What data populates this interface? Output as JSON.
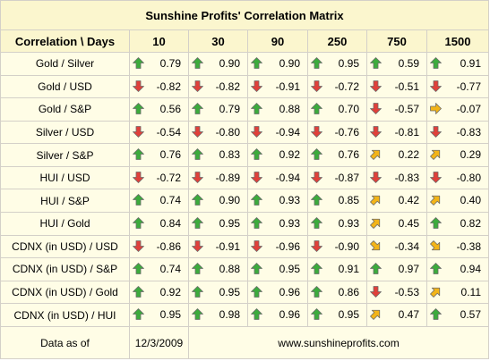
{
  "title": "Sunshine Profits' Correlation Matrix",
  "header": {
    "corner_label": "Correlation \\ Days",
    "columns": [
      "10",
      "30",
      "90",
      "250",
      "750",
      "1500"
    ]
  },
  "rows": [
    {
      "label": "Gold / Silver",
      "cells": [
        {
          "value": "0.79",
          "arrow": "up"
        },
        {
          "value": "0.90",
          "arrow": "up"
        },
        {
          "value": "0.90",
          "arrow": "up"
        },
        {
          "value": "0.95",
          "arrow": "up"
        },
        {
          "value": "0.59",
          "arrow": "up"
        },
        {
          "value": "0.91",
          "arrow": "up"
        }
      ]
    },
    {
      "label": "Gold / USD",
      "cells": [
        {
          "value": "-0.82",
          "arrow": "down"
        },
        {
          "value": "-0.82",
          "arrow": "down"
        },
        {
          "value": "-0.91",
          "arrow": "down"
        },
        {
          "value": "-0.72",
          "arrow": "down"
        },
        {
          "value": "-0.51",
          "arrow": "down"
        },
        {
          "value": "-0.77",
          "arrow": "down"
        }
      ]
    },
    {
      "label": "Gold / S&P",
      "cells": [
        {
          "value": "0.56",
          "arrow": "up"
        },
        {
          "value": "0.79",
          "arrow": "up"
        },
        {
          "value": "0.88",
          "arrow": "up"
        },
        {
          "value": "0.70",
          "arrow": "up"
        },
        {
          "value": "-0.57",
          "arrow": "down"
        },
        {
          "value": "-0.07",
          "arrow": "right"
        }
      ]
    },
    {
      "label": "Silver / USD",
      "cells": [
        {
          "value": "-0.54",
          "arrow": "down"
        },
        {
          "value": "-0.80",
          "arrow": "down"
        },
        {
          "value": "-0.94",
          "arrow": "down"
        },
        {
          "value": "-0.76",
          "arrow": "down"
        },
        {
          "value": "-0.81",
          "arrow": "down"
        },
        {
          "value": "-0.83",
          "arrow": "down"
        }
      ]
    },
    {
      "label": "Silver / S&P",
      "cells": [
        {
          "value": "0.76",
          "arrow": "up"
        },
        {
          "value": "0.83",
          "arrow": "up"
        },
        {
          "value": "0.92",
          "arrow": "up"
        },
        {
          "value": "0.76",
          "arrow": "up"
        },
        {
          "value": "0.22",
          "arrow": "up-right"
        },
        {
          "value": "0.29",
          "arrow": "up-right"
        }
      ]
    },
    {
      "label": "HUI / USD",
      "cells": [
        {
          "value": "-0.72",
          "arrow": "down"
        },
        {
          "value": "-0.89",
          "arrow": "down"
        },
        {
          "value": "-0.94",
          "arrow": "down"
        },
        {
          "value": "-0.87",
          "arrow": "down"
        },
        {
          "value": "-0.83",
          "arrow": "down"
        },
        {
          "value": "-0.80",
          "arrow": "down"
        }
      ]
    },
    {
      "label": "HUI / S&P",
      "cells": [
        {
          "value": "0.74",
          "arrow": "up"
        },
        {
          "value": "0.90",
          "arrow": "up"
        },
        {
          "value": "0.93",
          "arrow": "up"
        },
        {
          "value": "0.85",
          "arrow": "up"
        },
        {
          "value": "0.42",
          "arrow": "up-right"
        },
        {
          "value": "0.40",
          "arrow": "up-right"
        }
      ]
    },
    {
      "label": "HUI / Gold",
      "cells": [
        {
          "value": "0.84",
          "arrow": "up"
        },
        {
          "value": "0.95",
          "arrow": "up"
        },
        {
          "value": "0.93",
          "arrow": "up"
        },
        {
          "value": "0.93",
          "arrow": "up"
        },
        {
          "value": "0.45",
          "arrow": "up-right"
        },
        {
          "value": "0.82",
          "arrow": "up"
        }
      ]
    },
    {
      "label": "CDNX (in USD) / USD",
      "cells": [
        {
          "value": "-0.86",
          "arrow": "down"
        },
        {
          "value": "-0.91",
          "arrow": "down"
        },
        {
          "value": "-0.96",
          "arrow": "down"
        },
        {
          "value": "-0.90",
          "arrow": "down"
        },
        {
          "value": "-0.34",
          "arrow": "down-right"
        },
        {
          "value": "-0.38",
          "arrow": "down-right"
        }
      ]
    },
    {
      "label": "CDNX (in USD) / S&P",
      "cells": [
        {
          "value": "0.74",
          "arrow": "up"
        },
        {
          "value": "0.88",
          "arrow": "up"
        },
        {
          "value": "0.95",
          "arrow": "up"
        },
        {
          "value": "0.91",
          "arrow": "up"
        },
        {
          "value": "0.97",
          "arrow": "up"
        },
        {
          "value": "0.94",
          "arrow": "up"
        }
      ]
    },
    {
      "label": "CDNX (in USD) / Gold",
      "cells": [
        {
          "value": "0.92",
          "arrow": "up"
        },
        {
          "value": "0.95",
          "arrow": "up"
        },
        {
          "value": "0.96",
          "arrow": "up"
        },
        {
          "value": "0.86",
          "arrow": "up"
        },
        {
          "value": "-0.53",
          "arrow": "down"
        },
        {
          "value": "0.11",
          "arrow": "up-right"
        }
      ]
    },
    {
      "label": "CDNX (in USD) / HUI",
      "cells": [
        {
          "value": "0.95",
          "arrow": "up"
        },
        {
          "value": "0.98",
          "arrow": "up"
        },
        {
          "value": "0.96",
          "arrow": "up"
        },
        {
          "value": "0.95",
          "arrow": "up"
        },
        {
          "value": "0.47",
          "arrow": "up-right"
        },
        {
          "value": "0.57",
          "arrow": "up"
        }
      ]
    }
  ],
  "footer": {
    "label": "Data as of",
    "date": "12/3/2009",
    "website": "www.sunshineprofits.com"
  },
  "colors": {
    "up_arrow": "#3cab3c",
    "down_arrow": "#e0403a",
    "neutral_arrow": "#f2b418",
    "arrow_outline": "#6b6b6b"
  },
  "icons": {
    "up": "arrow-up-icon",
    "down": "arrow-down-icon",
    "right": "arrow-right-icon",
    "up-right": "arrow-up-right-icon",
    "down-right": "arrow-down-right-icon"
  }
}
